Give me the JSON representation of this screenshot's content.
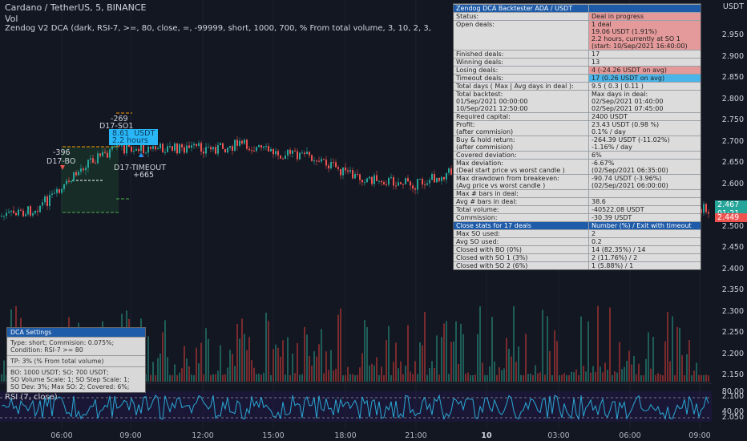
{
  "header": {
    "symbol_line": "Cardano / TetherUS, 5, BINANCE",
    "vol_label": "Vol",
    "indicator_line": "Zendog V2 DCA (dark, RSI-7, >=, 80, close, =, -99999, short, 1000, 700, % From total volume, 3, 10, 2, 3,"
  },
  "price_axis": {
    "currency": "USDT",
    "ticks": [
      "2.950",
      "2.900",
      "2.850",
      "2.800",
      "2.750",
      "2.700",
      "2.650",
      "2.600",
      "2.550",
      "2.500",
      "2.450",
      "2.400",
      "2.350",
      "2.300",
      "2.250",
      "2.200",
      "2.150",
      "2.100",
      "2.050"
    ],
    "current_price": "2.467",
    "countdown": "01:21",
    "alt_price": "2.449"
  },
  "rsi": {
    "label": "RSI (7, close)",
    "ticks": [
      "80.00",
      "40.00"
    ]
  },
  "time_axis": [
    "06:00",
    "09:00",
    "12:00",
    "15:00",
    "18:00",
    "21:00",
    "10",
    "03:00",
    "06:00",
    "09:00"
  ],
  "annotations": {
    "bo_value": "-396",
    "bo_label": "D17-BO",
    "so1_value": "-269",
    "so1_label": "D17-SO1",
    "tp_text": "8.61  USDT\n2.2 hours",
    "timeout_label": "D17-TIMEOUT",
    "timeout_value": "+665"
  },
  "backtester": {
    "title": "Zendog DCA Backtester ADA / USDT",
    "rows": [
      {
        "k": "Status:",
        "v": "Deal in progress",
        "style": "red"
      },
      {
        "k": "Open deals:",
        "v": "1 deal\n19.06 USDT (1.91%)\n2.2 hours, currently at SO 1\n(start: 10/Sep/2021 16:40:00)",
        "style": "red"
      },
      {
        "k": "Finished deals:",
        "v": "17",
        "style": ""
      },
      {
        "k": "Winning deals:",
        "v": "13",
        "style": ""
      },
      {
        "k": "Losing deals:",
        "v": "4 (-24.26 USDT on avg)",
        "style": "red"
      },
      {
        "k": "Timeout deals:",
        "v": "17 (0.26 USDT on avg)",
        "style": "blue"
      },
      {
        "k": "Total days  ( Max  |  Avg days in deal ):",
        "v": "9.5    ( 0.3  |  0.11 )",
        "style": ""
      },
      {
        "k": "Total backtest:\n01/Sep/2021 00:00:00\n10/Sep/2021 12:50:00",
        "v": "Max days in deal:\n02/Sep/2021 01:40:00\n02/Sep/2021 07:45:00",
        "style": ""
      },
      {
        "k": "Required capital:",
        "v": "2400 USDT",
        "style": ""
      },
      {
        "k": "Profit:\n(after commision)",
        "v": "23.43 USDT (0.98 %)\n0.1% / day",
        "style": ""
      },
      {
        "k": "Buy & hold return:\n(after commision)",
        "v": "-264.39 USDT (-11.02%)\n-1.16% / day",
        "style": ""
      },
      {
        "k": "Covered deviation:",
        "v": "6%",
        "style": ""
      },
      {
        "k": "Max deviation:\n(Deal start price vs worst candle )",
        "v": "-6.67%\n(02/Sep/2021 06:35:00)",
        "style": ""
      },
      {
        "k": "Max drawdown from breakeven:\n(Avg price vs worst candle )",
        "v": "-90.74 USDT (-3.96%)\n(02/Sep/2021 06:00:00)",
        "style": ""
      },
      {
        "k": "Max # bars in deal:",
        "v": "",
        "style": ""
      },
      {
        "k": "Avg # bars in deal:",
        "v": "38.6",
        "style": ""
      },
      {
        "k": "Total volume:",
        "v": "-40522.08 USDT",
        "style": ""
      },
      {
        "k": "Commission:",
        "v": "-30.39 USDT",
        "style": ""
      }
    ],
    "stats_header": {
      "k": "Close stats for 17 deals",
      "v": "Number (%) / Exit with timeout"
    },
    "stats_rows": [
      {
        "k": "Max SO used:",
        "v": "2"
      },
      {
        "k": "Avg SO used:",
        "v": "0.2"
      },
      {
        "k": "Closed with BO    (0%)",
        "v": "14 (82.35%) / 14"
      },
      {
        "k": "Closed with SO 1 (3%)",
        "v": "2 (11.76%) / 2"
      },
      {
        "k": "Closed with SO 2 (6%)",
        "v": "1 (5.88%) / 1"
      }
    ]
  },
  "dca_settings": {
    "title": "DCA Settings",
    "lines": [
      "Type: short; Commision: 0.075%;\nCondition: RSI-7 >= 80",
      "TP: 3%  (% From total volume)",
      "BO: 1000 USDT; SO: 700 USDT;\nSO Volume Scale: 1; SO Step Scale: 1;\nSO Dev: 3%; Max SO: 2; Covered: 6%;"
    ]
  },
  "colors": {
    "up": "#26a69a",
    "down": "#ef5350",
    "rsi": "#2aa9d6",
    "bg": "#131722",
    "orange": "#ff9800",
    "green": "#4caf50"
  }
}
